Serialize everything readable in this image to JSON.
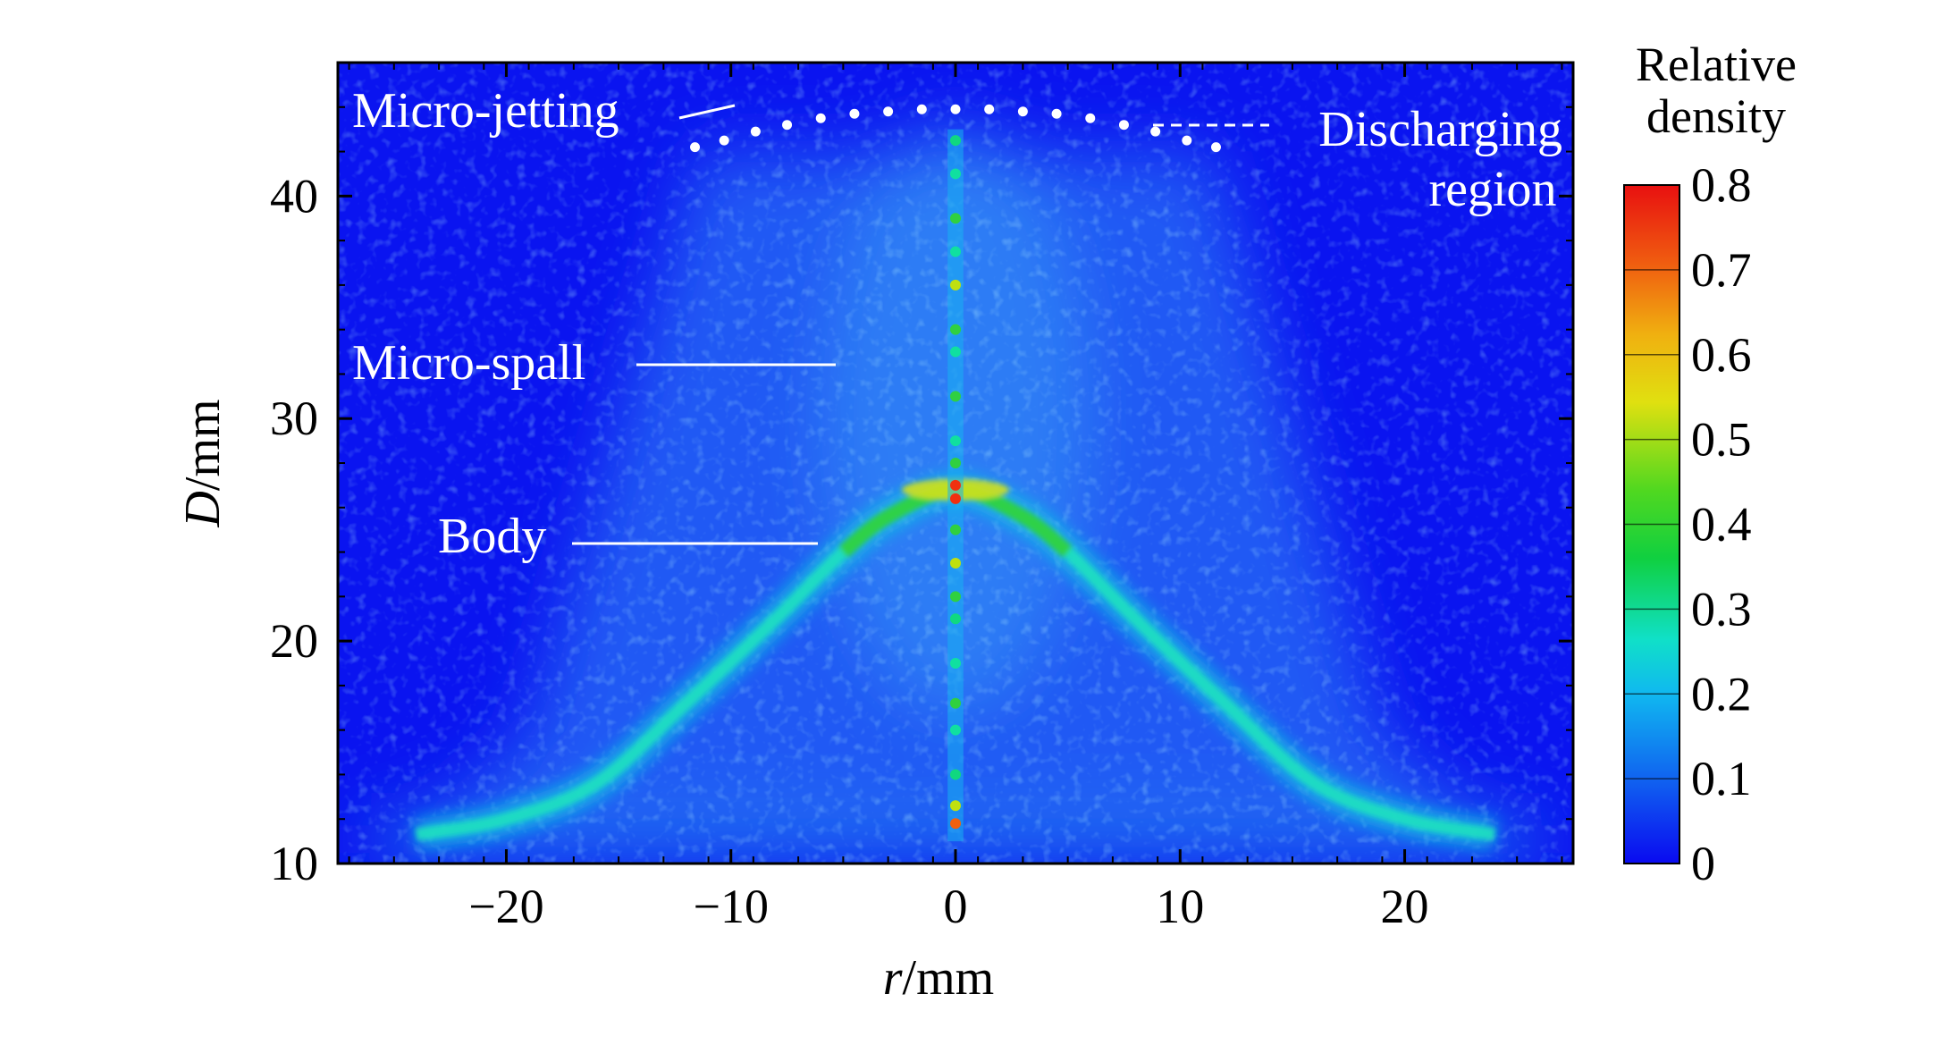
{
  "chart_data": {
    "type": "heatmap",
    "title": "",
    "xlabel_italic": "r",
    "xlabel_unit": "/mm",
    "ylabel_italic": "D",
    "ylabel_unit": "/mm",
    "xlim": [
      -27.5,
      27.5
    ],
    "ylim": [
      10,
      46
    ],
    "x_ticks": [
      -20,
      -10,
      0,
      10,
      20
    ],
    "x_tick_labels": [
      "−20",
      "−10",
      "0",
      "10",
      "20"
    ],
    "y_ticks": [
      10,
      20,
      30,
      40
    ],
    "y_tick_labels": [
      "10",
      "20",
      "30",
      "40"
    ],
    "grid": false,
    "colorbar": {
      "title_lines": [
        "Relative",
        "density"
      ],
      "range": [
        0,
        0.8
      ],
      "ticks": [
        0,
        0.1,
        0.2,
        0.3,
        0.4,
        0.5,
        0.6,
        0.7,
        0.8
      ],
      "tick_labels": [
        "0",
        "0.1",
        "0.2",
        "0.3",
        "0.4",
        "0.5",
        "0.6",
        "0.7",
        "0.8"
      ],
      "colors": [
        "#0a0af0",
        "#1060f0",
        "#10b0f0",
        "#10e8c0",
        "#10d860",
        "#40d820",
        "#c0e010",
        "#f0c010",
        "#f07010",
        "#e81010"
      ]
    },
    "body_profile": {
      "description_points_r": [
        -24,
        -20,
        -16,
        -12,
        -8,
        -5,
        -3,
        0,
        3,
        5,
        8,
        12,
        16,
        20,
        24
      ],
      "D": [
        11.3,
        12.0,
        13.6,
        17.2,
        21.0,
        24.0,
        25.6,
        26.8,
        25.6,
        24.0,
        21.0,
        17.2,
        13.6,
        12.0,
        11.3
      ]
    },
    "discharging_region_points": {
      "r": [
        -11.6,
        -10.3,
        -8.9,
        -7.5,
        -6.0,
        -4.5,
        -3.0,
        -1.5,
        0,
        1.5,
        3.0,
        4.5,
        6.0,
        7.5,
        8.9,
        10.3,
        11.6
      ],
      "D": [
        42.2,
        42.5,
        42.9,
        43.2,
        43.5,
        43.7,
        43.8,
        43.9,
        43.9,
        43.9,
        43.8,
        43.7,
        43.5,
        43.2,
        42.9,
        42.5,
        42.2
      ]
    },
    "annotations": [
      {
        "text": "Micro-jetting"
      },
      {
        "text_lines": [
          "Discharging",
          "region"
        ]
      },
      {
        "text": "Micro-spall"
      },
      {
        "text": "Body"
      }
    ]
  },
  "colors": {
    "background": "#0a14f0",
    "annotation": "#ffffff",
    "axis": "#000000"
  }
}
